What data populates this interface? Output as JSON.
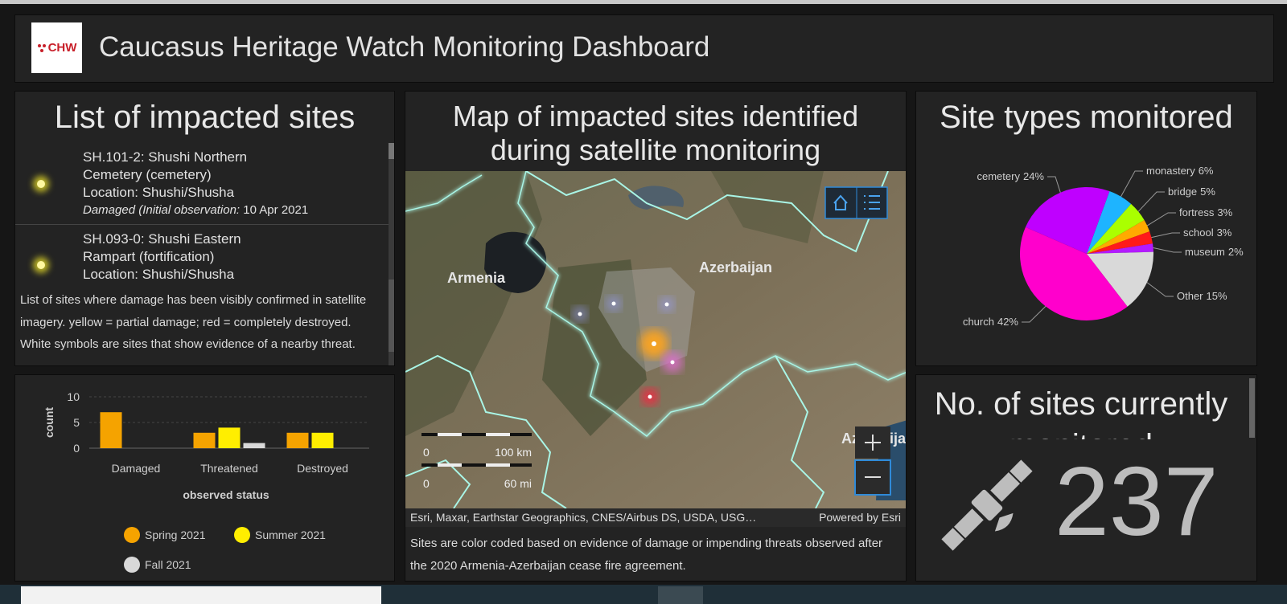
{
  "header": {
    "logo": "CHW",
    "title": "Caucasus Heritage Watch Monitoring Dashboard"
  },
  "site_list": {
    "title": "List of impacted sites",
    "items": [
      {
        "name": "SH.101-2: Shushi Northern Cemetery (cemetery)",
        "location": "Location: Shushi/Shusha",
        "status": "Damaged (Initial observation:",
        "date": "10 Apr 2021"
      },
      {
        "name": "SH.093-0: Shushi Eastern Rampart (fortification)",
        "location": "Location: Shushi/Shusha"
      }
    ],
    "description": "List of sites where damage has been visibly confirmed in satellite imagery. yellow = partial damage; red = completely destroyed. White symbols are sites that show evidence of a nearby threat."
  },
  "chart_data": [
    {
      "type": "bar",
      "x_label": "observed status",
      "y_label": "count",
      "categories": [
        "Damaged",
        "Threatened",
        "Destroyed"
      ],
      "series": [
        {
          "name": "Spring 2021",
          "color": "#f5a300",
          "values": [
            7,
            3,
            3
          ]
        },
        {
          "name": "Summer 2021",
          "color": "#ffee00",
          "values": [
            null,
            4,
            3
          ]
        },
        {
          "name": "Fall 2021",
          "color": "#d9d9d9",
          "values": [
            null,
            1,
            null
          ]
        }
      ],
      "ylim": [
        0,
        10
      ],
      "yticks": [
        0,
        5,
        10
      ],
      "grid": true
    },
    {
      "type": "pie",
      "title": "Site types monitored",
      "categories": [
        "monastery",
        "bridge",
        "fortress",
        "school",
        "museum",
        "Other",
        "church",
        "cemetery"
      ],
      "values": [
        6,
        5,
        3,
        3,
        2,
        15,
        42,
        24
      ],
      "value_labels": [
        "6%",
        "5%",
        "3%",
        "3%",
        "2%",
        "15%",
        "42%",
        "24%"
      ],
      "colors": [
        "#1eb4ff",
        "#aaff00",
        "#ffaa00",
        "#ff1a1a",
        "#b31aff",
        "#d9d9d9",
        "#ff00cc",
        "#bf00ff"
      ]
    }
  ],
  "map": {
    "title": "Map of impacted sites identified during satellite monitoring",
    "labels": [
      "Armenia",
      "Azerbaijan",
      "Azerbaijan"
    ],
    "scale": {
      "km_zero": "0",
      "km": "100 km",
      "mi_zero": "0",
      "mi": "60 mi"
    },
    "attribution": "Esri, Maxar, Earthstar Geographics, CNES/Airbus DS, USDA, USG…",
    "powered_by": "Powered by Esri",
    "caption": "Sites are color coded based on evidence of damage or impending threats observed after the 2020 Armenia-Azerbaijan cease fire agreement."
  },
  "indicator": {
    "title": "No. of sites currently monitored",
    "value": 237
  }
}
